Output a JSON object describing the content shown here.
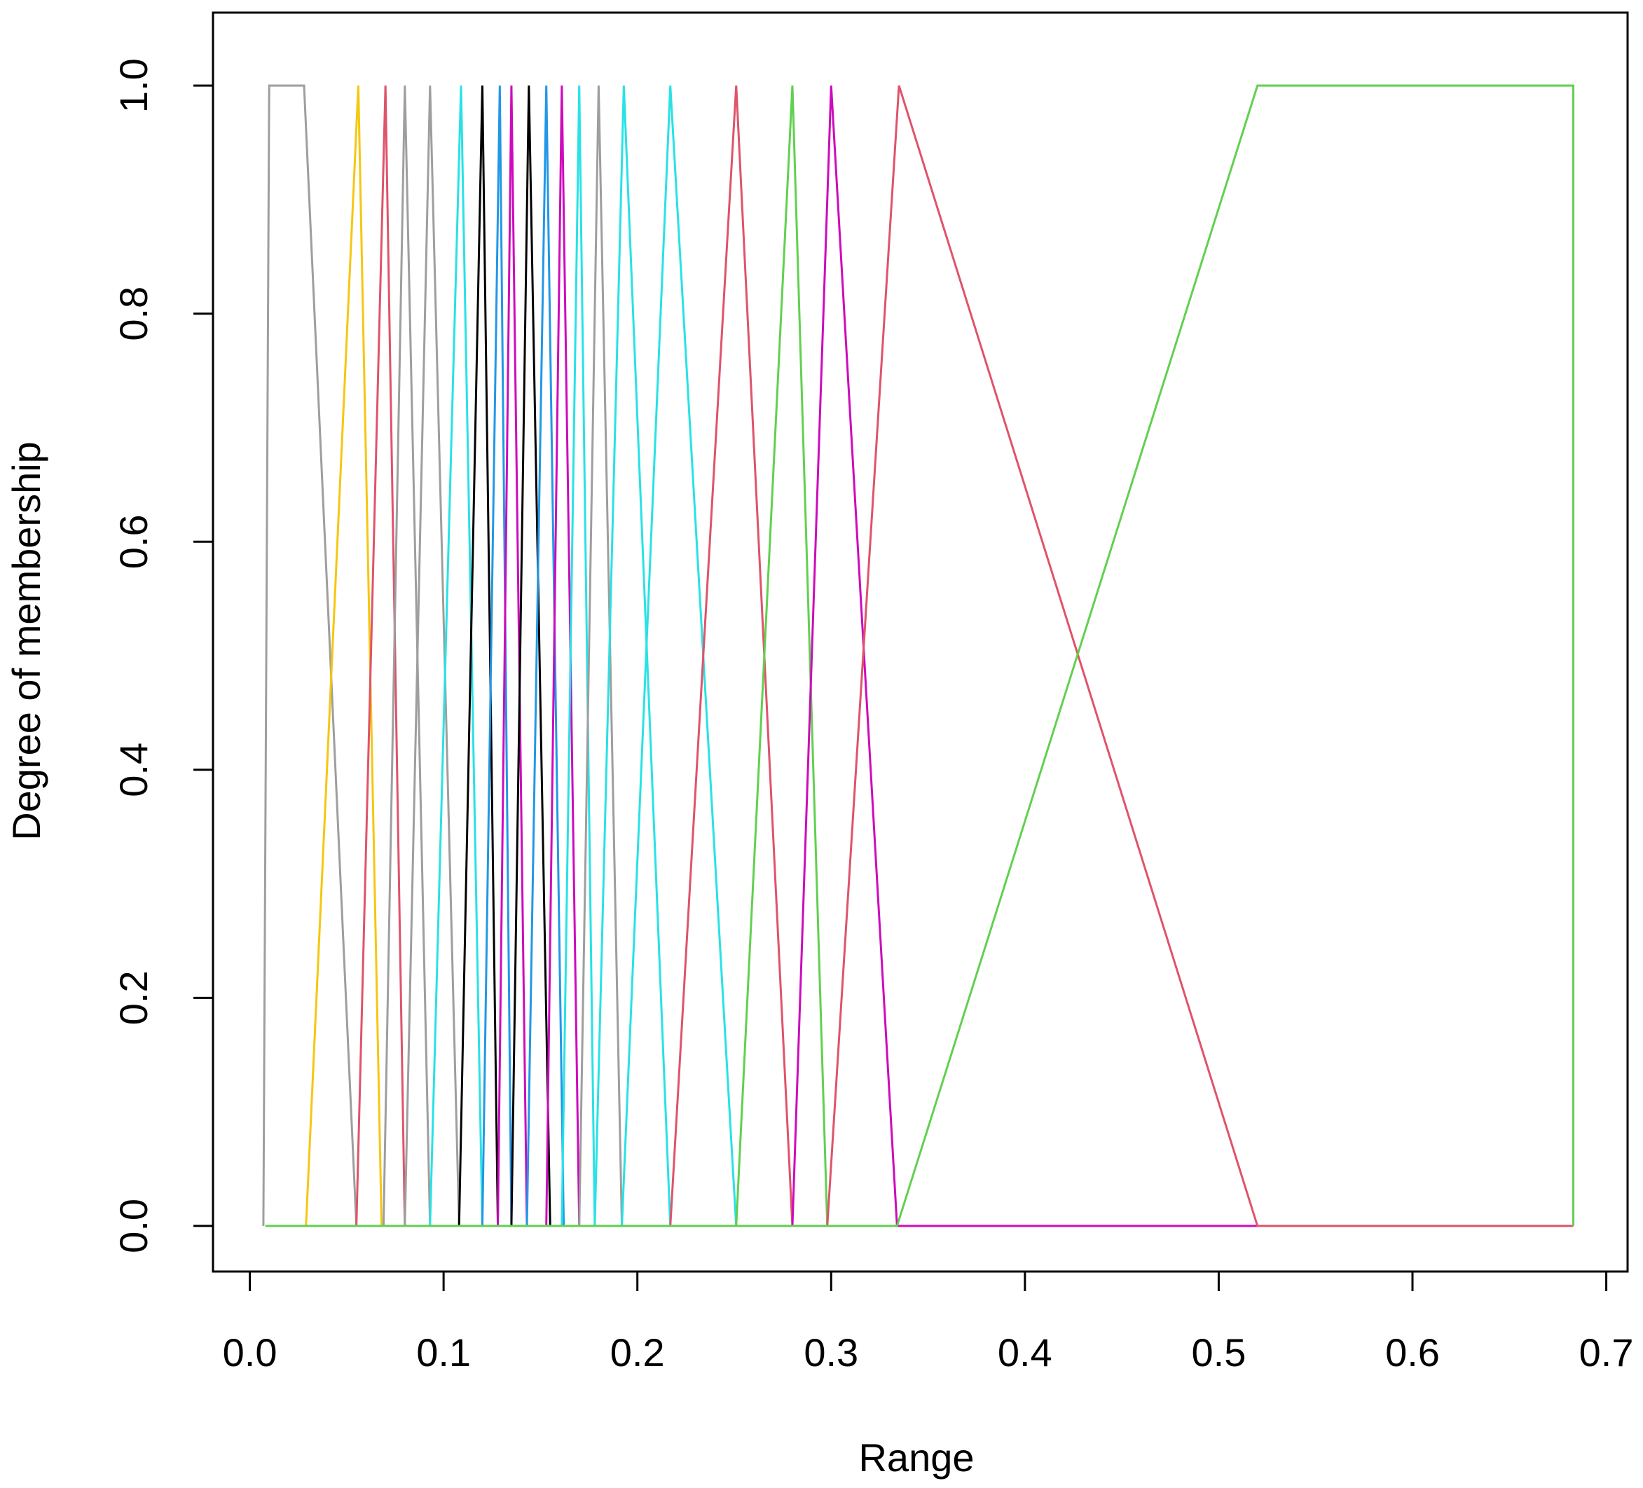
{
  "chart_data": {
    "type": "line",
    "x_label": "Range",
    "y_label": "Degree of membership",
    "xlim": [
      -0.019,
      0.711
    ],
    "ylim": [
      -0.04,
      1.064
    ],
    "xticks": [
      {
        "value": 0,
        "label": "0.0"
      },
      0.1,
      0.2,
      0.3,
      0.4,
      0.5,
      0.6,
      0.7
    ],
    "yticks": [
      {
        "value": 0,
        "label": "0.0"
      },
      0.2,
      0.4,
      0.6,
      0.8,
      {
        "value": 1,
        "label": "1.0"
      }
    ],
    "series": [
      {
        "color": "#9e9e9e",
        "x": [
          0.007,
          0.01,
          0.028,
          0.055
        ],
        "values": [
          0,
          1,
          1,
          0
        ]
      },
      {
        "color": "#f5c710",
        "x": [
          0.029,
          0.056,
          0.068
        ],
        "values": [
          0,
          1,
          0
        ]
      },
      {
        "color": "#df536b",
        "x": [
          0.055,
          0.07,
          0.08
        ],
        "values": [
          0,
          1,
          0
        ]
      },
      {
        "color": "#9e9e9e",
        "x": [
          0.069,
          0.08,
          0.093
        ],
        "values": [
          0,
          1,
          0
        ]
      },
      {
        "color": "#9e9e9e",
        "x": [
          0.08,
          0.093,
          0.108
        ],
        "values": [
          0,
          1,
          0
        ]
      },
      {
        "color": "#28e2e5",
        "x": [
          0.093,
          0.109,
          0.12
        ],
        "values": [
          0,
          1,
          0
        ]
      },
      {
        "color": "#000000",
        "x": [
          0.108,
          0.12,
          0.128
        ],
        "values": [
          0,
          1,
          0
        ]
      },
      {
        "color": "#2297e6",
        "x": [
          0.12,
          0.129,
          0.135
        ],
        "values": [
          0,
          1,
          0
        ]
      },
      {
        "color": "#cd0bbc",
        "x": [
          0.128,
          0.135,
          0.143
        ],
        "values": [
          0,
          1,
          0
        ]
      },
      {
        "color": "#000000",
        "x": [
          0.135,
          0.144,
          0.155
        ],
        "values": [
          0,
          1,
          0
        ]
      },
      {
        "color": "#2297e6",
        "x": [
          0.143,
          0.153,
          0.162
        ],
        "values": [
          0,
          1,
          0
        ]
      },
      {
        "color": "#cd0bbc",
        "x": [
          0.153,
          0.161,
          0.17
        ],
        "values": [
          0,
          1,
          0
        ]
      },
      {
        "color": "#28e2e5",
        "x": [
          0.161,
          0.17,
          0.178
        ],
        "values": [
          0,
          1,
          0
        ]
      },
      {
        "color": "#9e9e9e",
        "x": [
          0.17,
          0.18,
          0.192
        ],
        "values": [
          0,
          1,
          0
        ]
      },
      {
        "color": "#28e2e5",
        "x": [
          0.178,
          0.193,
          0.217
        ],
        "values": [
          0,
          1,
          0
        ]
      },
      {
        "color": "#28e2e5",
        "x": [
          0.192,
          0.217,
          0.251
        ],
        "values": [
          0,
          1,
          0
        ]
      },
      {
        "color": "#df536b",
        "x": [
          0.217,
          0.251,
          0.28
        ],
        "values": [
          0,
          1,
          0
        ]
      },
      {
        "color": "#61d04f",
        "x": [
          0.251,
          0.28,
          0.298
        ],
        "values": [
          0,
          1,
          0
        ]
      },
      {
        "color": "#cd0bbc",
        "x": [
          0.28,
          0.3,
          0.334,
          0.52
        ],
        "values": [
          0,
          1,
          0,
          0
        ]
      },
      {
        "color": "#df536b",
        "x": [
          0.298,
          0.335,
          0.52,
          0.683
        ],
        "values": [
          0,
          1,
          0,
          0
        ]
      },
      {
        "color": "#61d04f",
        "x": [
          0.008,
          0.334,
          0.52,
          0.683,
          0.683
        ],
        "values": [
          0,
          0,
          1,
          1,
          0
        ]
      }
    ]
  }
}
